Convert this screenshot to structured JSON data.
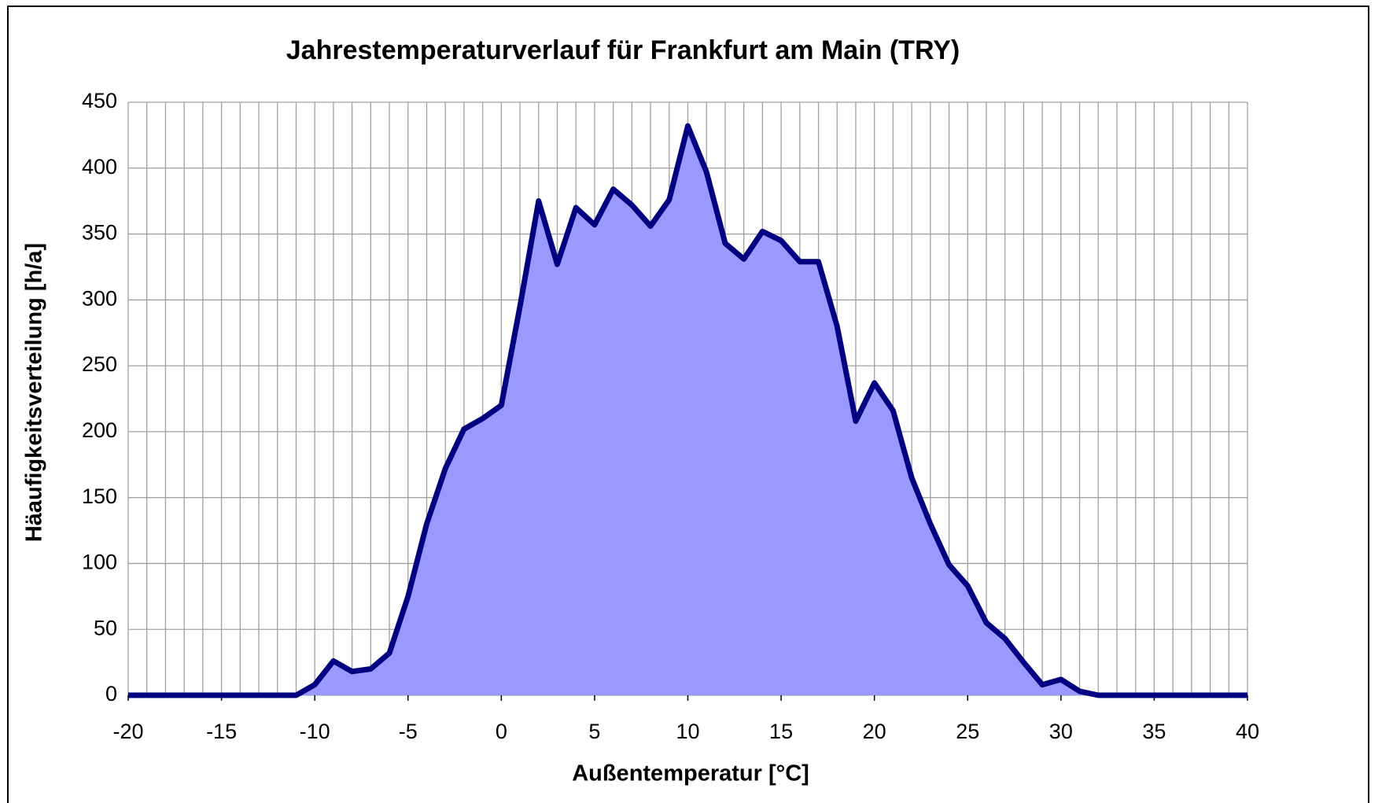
{
  "chart_data": {
    "type": "area",
    "title": "Jahrestemperaturverlauf für Frankfurt am Main (TRY)",
    "xlabel": "Außentemperatur [°C]",
    "ylabel": "Häaufigkeitsverteilung [h/a]",
    "x": [
      -20,
      -19,
      -18,
      -17,
      -16,
      -15,
      -14,
      -13,
      -12,
      -11,
      -10,
      -9,
      -8,
      -7,
      -6,
      -5,
      -4,
      -3,
      -2,
      -1,
      0,
      1,
      2,
      3,
      4,
      5,
      6,
      7,
      8,
      9,
      10,
      11,
      12,
      13,
      14,
      15,
      16,
      17,
      18,
      19,
      20,
      21,
      22,
      23,
      24,
      25,
      26,
      27,
      28,
      29,
      30,
      31,
      32,
      33,
      34,
      35,
      36,
      37,
      38,
      39,
      40
    ],
    "values": [
      0,
      0,
      0,
      0,
      0,
      0,
      0,
      0,
      0,
      0,
      8,
      26,
      18,
      20,
      32,
      75,
      130,
      172,
      202,
      210,
      220,
      295,
      375,
      327,
      370,
      357,
      384,
      372,
      356,
      376,
      432,
      397,
      343,
      331,
      352,
      345,
      329,
      329,
      280,
      208,
      237,
      216,
      165,
      130,
      99,
      83,
      55,
      43,
      25,
      8,
      12,
      3,
      0,
      0,
      0,
      0,
      0,
      0,
      0,
      0,
      0
    ],
    "color": "#9999ff",
    "line_color": "#000080",
    "xlim": [
      -20,
      40
    ],
    "xticks": [
      -20,
      -15,
      -10,
      -5,
      0,
      5,
      10,
      15,
      20,
      25,
      30,
      35,
      40
    ],
    "ylim": [
      0,
      450
    ],
    "yticks": [
      0,
      50,
      100,
      150,
      200,
      250,
      300,
      350,
      400,
      450
    ],
    "grid": true
  }
}
